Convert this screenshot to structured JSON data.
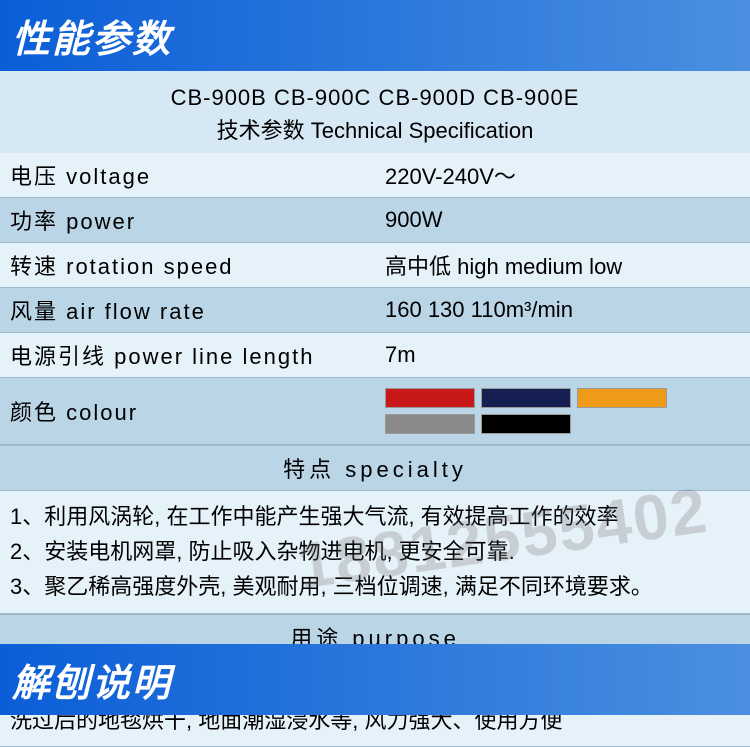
{
  "header": {
    "title": "性能参数"
  },
  "spec_title": {
    "models": "CB-900B  CB-900C  CB-900D  CB-900E",
    "subtitle": "技术参数 Technical Specification"
  },
  "rows": [
    {
      "label": "电压 voltage",
      "value": "220V-240V～",
      "bg": "r-light"
    },
    {
      "label": "功率 power",
      "value": "900W",
      "bg": "r-dark"
    },
    {
      "label": "转速 rotation speed",
      "value": "高中低 high medium low",
      "bg": "r-light"
    },
    {
      "label": "风量 air flow rate",
      "value": "160   130   110m³/min",
      "bg": "r-dark"
    },
    {
      "label": "电源引线 power line length",
      "value": "7m",
      "bg": "r-light"
    }
  ],
  "colour": {
    "label": "颜色 colour",
    "swatches": [
      "#c81818",
      "#151f52",
      "#f09a1a",
      "#8a8a8a",
      "#000000"
    ]
  },
  "specialty": {
    "heading": "特点    specialty",
    "items": [
      "1、利用风涡轮, 在工作中能产生强大气流, 有效提高工作的效率",
      "2、安装电机网罩, 防止吸入杂物进电机, 更安全可靠.",
      "3、聚乙稀高强度外壳,  美观耐用,  三档位调速,  满足不同环境要求。"
    ]
  },
  "purpose": {
    "heading": "用途    purpose",
    "text": "静音型电机, 风力强劲. 适用宾馆  工厂   仓库及要求强劲风力的地方,  用于洗过后的地毯烘干,  地面潮湿浸水等,  风力强大、使用方便"
  },
  "footer": {
    "title": "解刨说明"
  },
  "watermark": "18812555402"
}
